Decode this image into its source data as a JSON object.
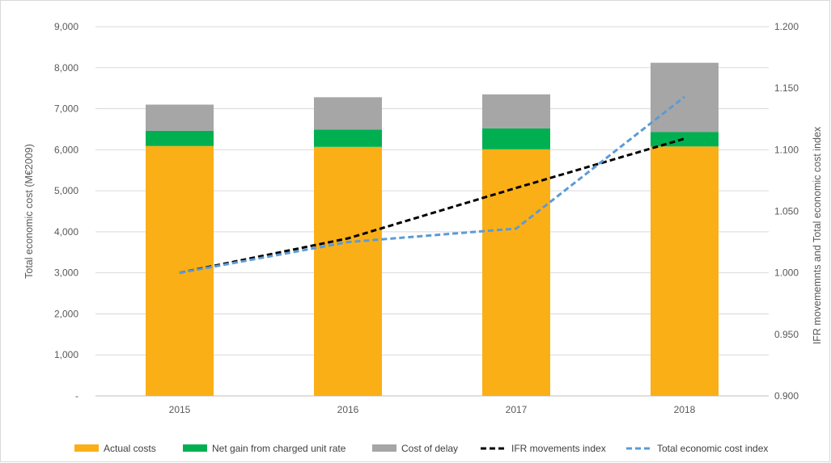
{
  "chart_data": {
    "type": "bar",
    "stacked": true,
    "categories": [
      "2015",
      "2016",
      "2017",
      "2018"
    ],
    "series": [
      {
        "name": "Actual costs",
        "kind": "bar",
        "axis": "left",
        "color": "#FBAF17",
        "values": [
          6090,
          6070,
          6010,
          6080
        ]
      },
      {
        "name": "Net gain from charged unit rate",
        "kind": "bar",
        "axis": "left",
        "color": "#00B050",
        "values": [
          370,
          420,
          510,
          350
        ]
      },
      {
        "name": "Cost of delay",
        "kind": "bar",
        "axis": "left",
        "color": "#A6A6A6",
        "values": [
          640,
          790,
          830,
          1690
        ]
      },
      {
        "name": "IFR movements index",
        "kind": "line",
        "axis": "right",
        "color": "#000000",
        "dash": "dashed",
        "values": [
          1.0,
          1.028,
          1.069,
          1.109
        ]
      },
      {
        "name": "Total economic cost index",
        "kind": "line",
        "axis": "right",
        "color": "#5B9BD5",
        "dash": "dashed",
        "values": [
          1.0,
          1.025,
          1.036,
          1.143
        ]
      }
    ],
    "ylabel": "Total economic cost (M€2009)",
    "y2label": "IFR movememnts and Total economic cost index",
    "ylim": [
      0,
      9000
    ],
    "y2lim": [
      0.9,
      1.2
    ],
    "yticks": [
      "-",
      "1,000",
      "2,000",
      "3,000",
      "4,000",
      "5,000",
      "6,000",
      "7,000",
      "8,000",
      "9,000"
    ],
    "y2ticks": [
      "0.900",
      "0.950",
      "1.000",
      "1.050",
      "1.100",
      "1.150",
      "1.200"
    ],
    "grid": true,
    "legend": "bottom"
  }
}
